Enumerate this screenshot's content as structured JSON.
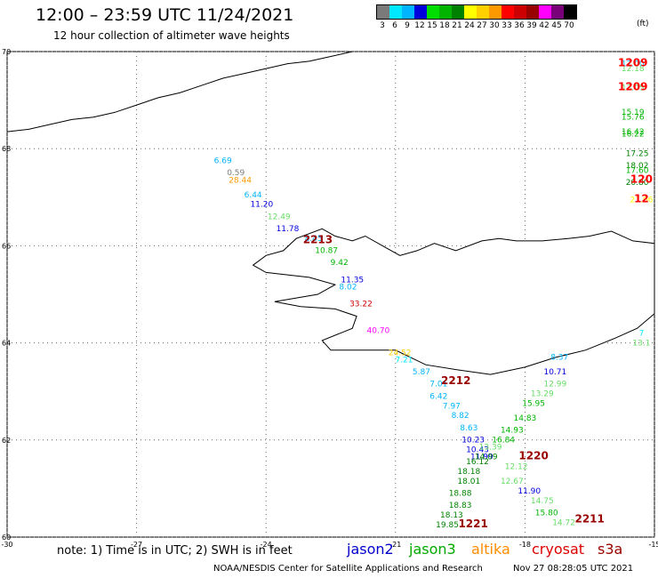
{
  "title": "12:00 – 23:59 UTC 11/24/2021",
  "subtitle": "12 hour collection of altimeter wave heights",
  "colorbar": {
    "colors": [
      "#7a7a7a",
      "#00e8ff",
      "#00b4ff",
      "#0000dd",
      "#00dd00",
      "#00b400",
      "#008000",
      "#ffff00",
      "#ffd000",
      "#ff9900",
      "#ff0000",
      "#cc0000",
      "#990000",
      "#ff00ff",
      "#7a007a",
      "#000000"
    ],
    "labels": [
      "3",
      "6",
      "9",
      "12",
      "15",
      "18",
      "21",
      "24",
      "27",
      "30",
      "33",
      "36",
      "39",
      "42",
      "45",
      "70"
    ],
    "unit": "(ft)"
  },
  "axes": {
    "lat_ticks": [
      "70",
      "68",
      "66",
      "64",
      "62",
      "60"
    ],
    "lon_ticks": [
      "-30",
      "-27",
      "-24",
      "-21",
      "-18",
      "-15"
    ]
  },
  "footnote": "note: 1) Time is in UTC; 2) SWH is in feet",
  "legend": [
    {
      "name": "jason2",
      "color": "#0000cc"
    },
    {
      "name": "jason3",
      "color": "#00aa00"
    },
    {
      "name": "altika",
      "color": "#ff8c00"
    },
    {
      "name": "cryosat",
      "color": "#dd0000"
    },
    {
      "name": "s3a",
      "color": "#990000"
    }
  ],
  "credit": "NOAA/NESDIS Center for Satellite Applications and Research",
  "timestamp": "Nov 27 08:28:05 UTC 2021",
  "chart_data": {
    "type": "scatter",
    "title": "12:00 – 23:59 UTC 11/24/2021",
    "xlabel": "",
    "ylabel": "",
    "xlim": [
      -30,
      -15
    ],
    "ylim": [
      60,
      70
    ],
    "unit": "ft",
    "labels": [
      {
        "lon": -15.5,
        "lat": 69.7,
        "text": "12.00",
        "color": "#00b4ff"
      },
      {
        "lon": -15.5,
        "lat": 69.6,
        "text": "12.18",
        "color": "#66dd66"
      },
      {
        "lon": -15.5,
        "lat": 69.7,
        "text": "1209",
        "color": "#ff0000",
        "pass": true
      },
      {
        "lon": -15.5,
        "lat": 69.2,
        "text": "13.05",
        "color": "#66dd66"
      },
      {
        "lon": -15.5,
        "lat": 69.2,
        "text": "1209",
        "color": "#ff0000",
        "pass": true
      },
      {
        "lon": -15.5,
        "lat": 68.7,
        "text": "15.19",
        "color": "#00b400"
      },
      {
        "lon": -15.5,
        "lat": 68.6,
        "text": "15.76",
        "color": "#00b400"
      },
      {
        "lon": -15.5,
        "lat": 68.3,
        "text": "16.42",
        "color": "#00b400"
      },
      {
        "lon": -15.5,
        "lat": 68.25,
        "text": "16.22",
        "color": "#00b400"
      },
      {
        "lon": -15.4,
        "lat": 67.85,
        "text": "17.25",
        "color": "#008000"
      },
      {
        "lon": -15.4,
        "lat": 67.6,
        "text": "18.02",
        "color": "#008000"
      },
      {
        "lon": -15.4,
        "lat": 67.5,
        "text": "17.60",
        "color": "#00b400"
      },
      {
        "lon": -15.4,
        "lat": 67.25,
        "text": "20.80",
        "color": "#008000"
      },
      {
        "lon": -15.3,
        "lat": 66.9,
        "text": "21.06",
        "color": "#ffff00"
      },
      {
        "lon": -15.3,
        "lat": 67.3,
        "text": "120",
        "color": "#ff0000",
        "pass": true
      },
      {
        "lon": -15.3,
        "lat": 66.9,
        "text": "12",
        "color": "#ff0000",
        "pass": true
      },
      {
        "lon": -25.0,
        "lat": 67.7,
        "text": "6.69",
        "color": "#00b4ff"
      },
      {
        "lon": -24.7,
        "lat": 67.45,
        "text": "0.59",
        "color": "#7a7a7a"
      },
      {
        "lon": -24.6,
        "lat": 67.3,
        "text": "28.44",
        "color": "#ff9900"
      },
      {
        "lon": -24.3,
        "lat": 67.0,
        "text": "6.44",
        "color": "#00b4ff"
      },
      {
        "lon": -24.1,
        "lat": 66.8,
        "text": "11.20",
        "color": "#0000dd"
      },
      {
        "lon": -23.7,
        "lat": 66.55,
        "text": "12.49",
        "color": "#66dd66"
      },
      {
        "lon": -23.5,
        "lat": 66.3,
        "text": "11.78",
        "color": "#0000dd"
      },
      {
        "lon": -22.9,
        "lat": 66.1,
        "text": "8.45",
        "color": "#00b4ff"
      },
      {
        "lon": -22.8,
        "lat": 66.05,
        "text": "2213",
        "color": "#990000",
        "pass": true
      },
      {
        "lon": -22.6,
        "lat": 65.85,
        "text": "10.87",
        "color": "#00b400"
      },
      {
        "lon": -22.3,
        "lat": 65.6,
        "text": "9.42",
        "color": "#00b400"
      },
      {
        "lon": -22.0,
        "lat": 65.25,
        "text": "11.35",
        "color": "#0000dd"
      },
      {
        "lon": -22.1,
        "lat": 65.1,
        "text": "8.02",
        "color": "#00b4ff"
      },
      {
        "lon": -21.8,
        "lat": 64.75,
        "text": "33.22",
        "color": "#cc0000"
      },
      {
        "lon": -21.4,
        "lat": 64.2,
        "text": "40.70",
        "color": "#ff00ff"
      },
      {
        "lon": -20.9,
        "lat": 63.75,
        "text": "24.52",
        "color": "#ffd000"
      },
      {
        "lon": -20.8,
        "lat": 63.6,
        "text": "7.21",
        "color": "#00e8ff"
      },
      {
        "lon": -20.4,
        "lat": 63.35,
        "text": "5.87",
        "color": "#00b4ff"
      },
      {
        "lon": -20.0,
        "lat": 63.1,
        "text": "7.01",
        "color": "#00b4ff"
      },
      {
        "lon": -19.6,
        "lat": 63.15,
        "text": "2212",
        "color": "#990000",
        "pass": true
      },
      {
        "lon": -20.0,
        "lat": 62.85,
        "text": "6.42",
        "color": "#00b4ff"
      },
      {
        "lon": -19.7,
        "lat": 62.65,
        "text": "7.97",
        "color": "#00b4ff"
      },
      {
        "lon": -19.5,
        "lat": 62.45,
        "text": "8.82",
        "color": "#00b4ff"
      },
      {
        "lon": -19.3,
        "lat": 62.2,
        "text": "8.63",
        "color": "#00b4ff"
      },
      {
        "lon": -19.2,
        "lat": 61.95,
        "text": "10.23",
        "color": "#0000dd"
      },
      {
        "lon": -19.1,
        "lat": 61.75,
        "text": "10.43",
        "color": "#0000dd"
      },
      {
        "lon": -18.8,
        "lat": 61.8,
        "text": "13.39",
        "color": "#66dd66"
      },
      {
        "lon": -19.0,
        "lat": 61.6,
        "text": "11.99",
        "color": "#0000dd"
      },
      {
        "lon": -19.1,
        "lat": 61.5,
        "text": "16.12",
        "color": "#008000"
      },
      {
        "lon": -18.9,
        "lat": 61.6,
        "text": "14.09",
        "color": "#008000"
      },
      {
        "lon": -19.3,
        "lat": 61.3,
        "text": "18.18",
        "color": "#008000"
      },
      {
        "lon": -19.3,
        "lat": 61.1,
        "text": "18.01",
        "color": "#008000"
      },
      {
        "lon": -19.5,
        "lat": 60.85,
        "text": "18.88",
        "color": "#008000"
      },
      {
        "lon": -19.5,
        "lat": 60.6,
        "text": "18.83",
        "color": "#008000"
      },
      {
        "lon": -19.7,
        "lat": 60.4,
        "text": "18.13",
        "color": "#008000"
      },
      {
        "lon": -19.8,
        "lat": 60.2,
        "text": "19.85",
        "color": "#008000"
      },
      {
        "lon": -19.2,
        "lat": 60.2,
        "text": "1221",
        "color": "#990000",
        "pass": true
      },
      {
        "lon": -18.2,
        "lat": 61.4,
        "text": "12.12",
        "color": "#66dd66"
      },
      {
        "lon": -18.3,
        "lat": 61.1,
        "text": "12.67",
        "color": "#66dd66"
      },
      {
        "lon": -17.8,
        "lat": 61.6,
        "text": "1220",
        "color": "#990000",
        "pass": true
      },
      {
        "lon": -17.2,
        "lat": 63.65,
        "text": "8.37",
        "color": "#00b4ff"
      },
      {
        "lon": -17.3,
        "lat": 63.35,
        "text": "10.71",
        "color": "#0000dd"
      },
      {
        "lon": -17.3,
        "lat": 63.1,
        "text": "12.99",
        "color": "#66dd66"
      },
      {
        "lon": -17.6,
        "lat": 62.9,
        "text": "13.29",
        "color": "#66dd66"
      },
      {
        "lon": -17.8,
        "lat": 62.7,
        "text": "15.95",
        "color": "#00b400"
      },
      {
        "lon": -18.0,
        "lat": 62.4,
        "text": "14.83",
        "color": "#00b400"
      },
      {
        "lon": -18.3,
        "lat": 62.15,
        "text": "14.93",
        "color": "#00b400"
      },
      {
        "lon": -18.5,
        "lat": 61.95,
        "text": "16.84",
        "color": "#00b400"
      },
      {
        "lon": -17.9,
        "lat": 60.9,
        "text": "11.90",
        "color": "#0000dd"
      },
      {
        "lon": -17.6,
        "lat": 60.7,
        "text": "14.75",
        "color": "#66dd66"
      },
      {
        "lon": -17.5,
        "lat": 60.45,
        "text": "15.80",
        "color": "#00b400"
      },
      {
        "lon": -17.1,
        "lat": 60.25,
        "text": "14.72",
        "color": "#66dd66"
      },
      {
        "lon": -16.5,
        "lat": 60.3,
        "text": "2211",
        "color": "#990000",
        "pass": true
      },
      {
        "lon": -15.3,
        "lat": 64.15,
        "text": "7",
        "color": "#00e8ff"
      },
      {
        "lon": -15.3,
        "lat": 63.95,
        "text": "13.1",
        "color": "#66dd66"
      }
    ]
  }
}
